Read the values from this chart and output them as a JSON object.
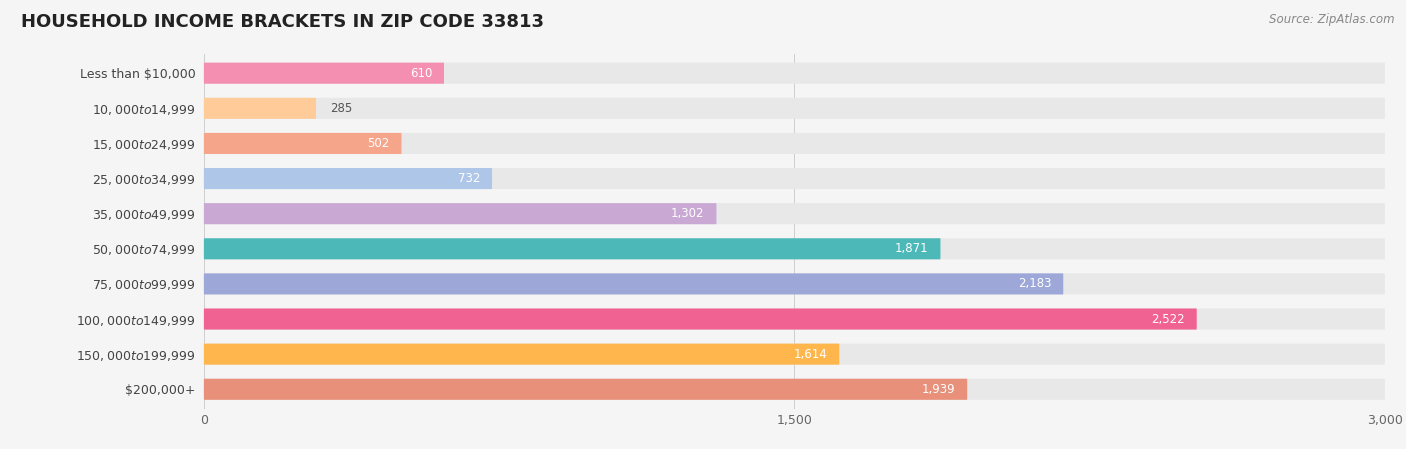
{
  "title": "HOUSEHOLD INCOME BRACKETS IN ZIP CODE 33813",
  "source": "Source: ZipAtlas.com",
  "categories": [
    "Less than $10,000",
    "$10,000 to $14,999",
    "$15,000 to $24,999",
    "$25,000 to $34,999",
    "$35,000 to $49,999",
    "$50,000 to $74,999",
    "$75,000 to $99,999",
    "$100,000 to $149,999",
    "$150,000 to $199,999",
    "$200,000+"
  ],
  "values": [
    610,
    285,
    502,
    732,
    1302,
    1871,
    2183,
    2522,
    1614,
    1939
  ],
  "bar_colors": [
    "#f48fb1",
    "#ffcc99",
    "#f4a58a",
    "#aec6e8",
    "#c9a8d4",
    "#4db8b8",
    "#9ea8d8",
    "#f06292",
    "#ffb74d",
    "#e8907a"
  ],
  "bg_color": "#f5f5f5",
  "bar_bg_color": "#e8e8e8",
  "xlim": [
    0,
    3000
  ],
  "xticks": [
    0,
    1500,
    3000
  ],
  "xtick_labels": [
    "0",
    "1,500",
    "3,000"
  ],
  "title_fontsize": 13,
  "label_fontsize": 9,
  "value_fontsize": 8.5,
  "source_fontsize": 8.5
}
